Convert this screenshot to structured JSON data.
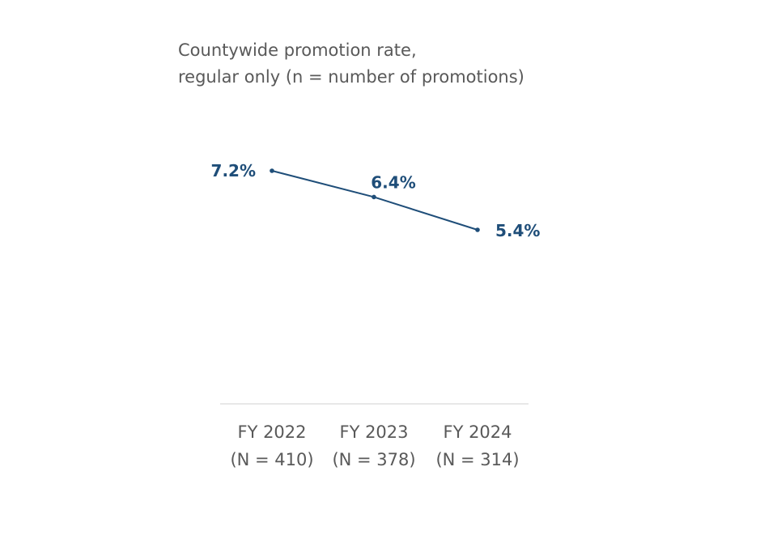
{
  "chart_data": {
    "type": "line",
    "title_lines": [
      "Countywide promotion rate,",
      "regular only (n = number of promotions)"
    ],
    "categories": [
      [
        "FY 2022",
        "(N = 410)"
      ],
      [
        "FY 2023",
        "(N = 378)"
      ],
      [
        "FY 2024",
        "(N = 314)"
      ]
    ],
    "series": [
      {
        "values": [
          7.2,
          6.4,
          5.4
        ],
        "labels": [
          "7.2%",
          "6.4%",
          "5.4%"
        ]
      }
    ],
    "ylim": [
      0,
      10
    ],
    "grid": false,
    "legend": "none",
    "colors": {
      "line": "#1f4e79",
      "label": "#1f4e79",
      "axis": "#d9d9d9",
      "text": "#595959"
    }
  }
}
